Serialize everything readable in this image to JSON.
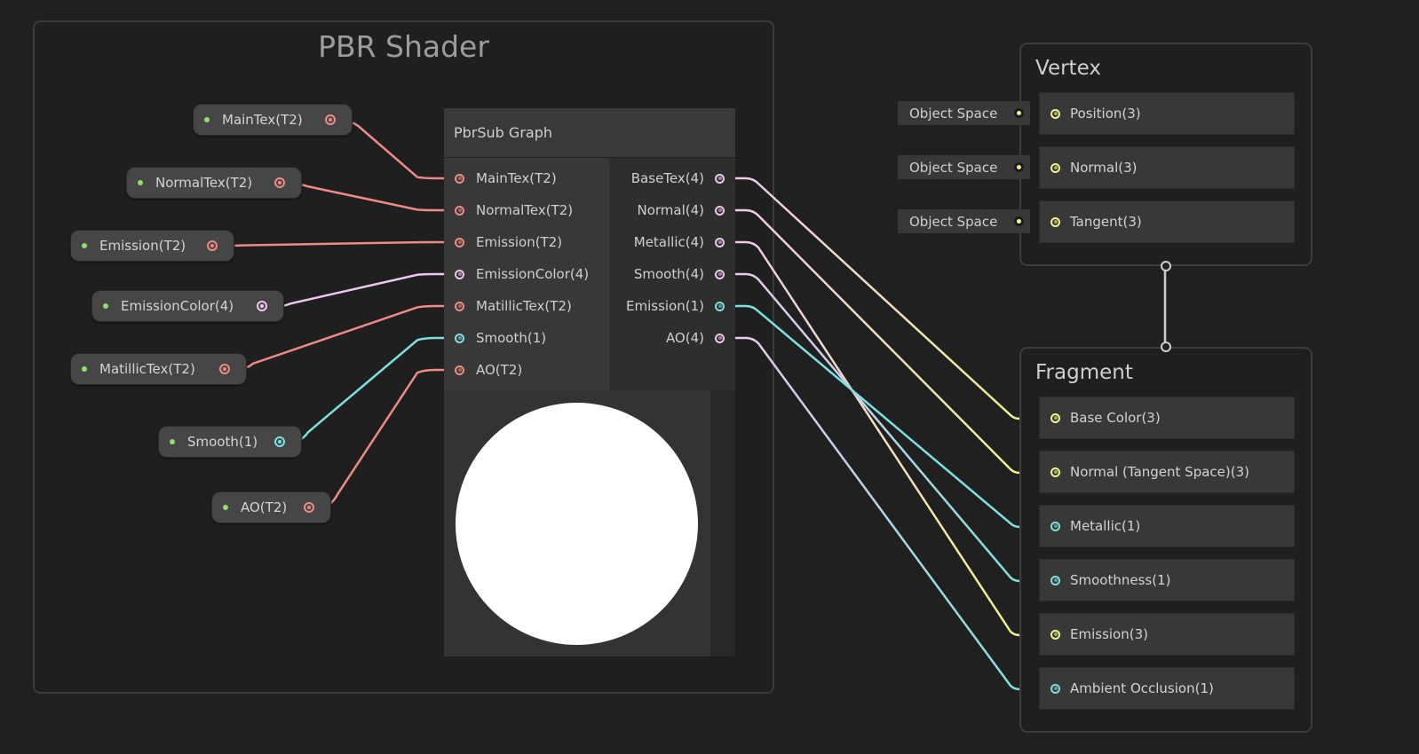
{
  "group": {
    "title": "PBR Shader"
  },
  "colors": {
    "texture": "#f08a84",
    "vector4": "#eec7f0",
    "float": "#7ee0e0",
    "vector3": "#f3f38c",
    "property_dot": "#8ce06b"
  },
  "properties": [
    {
      "label": "MainTex(T2)",
      "type": "texture"
    },
    {
      "label": "NormalTex(T2)",
      "type": "texture"
    },
    {
      "label": "Emission(T2)",
      "type": "texture"
    },
    {
      "label": "EmissionColor(4)",
      "type": "vector4"
    },
    {
      "label": "MatillicTex(T2)",
      "type": "texture"
    },
    {
      "label": "Smooth(1)",
      "type": "float"
    },
    {
      "label": "AO(T2)",
      "type": "texture"
    }
  ],
  "subgraph": {
    "title": "PbrSub Graph",
    "inputs": [
      {
        "label": "MainTex(T2)",
        "type": "texture"
      },
      {
        "label": "NormalTex(T2)",
        "type": "texture"
      },
      {
        "label": "Emission(T2)",
        "type": "texture"
      },
      {
        "label": "EmissionColor(4)",
        "type": "vector4"
      },
      {
        "label": "MatillicTex(T2)",
        "type": "texture"
      },
      {
        "label": "Smooth(1)",
        "type": "float"
      },
      {
        "label": "AO(T2)",
        "type": "texture"
      }
    ],
    "outputs": [
      {
        "label": "BaseTex(4)",
        "type": "vector4",
        "target": "Base Color(3)"
      },
      {
        "label": "Normal(4)",
        "type": "vector4",
        "target": "Normal (Tangent Space)(3)"
      },
      {
        "label": "Metallic(4)",
        "type": "vector4",
        "target": "Emission(3)"
      },
      {
        "label": "Smooth(4)",
        "type": "vector4",
        "target": "Smoothness(1)"
      },
      {
        "label": "Emission(1)",
        "type": "float",
        "target": "Metallic(1)"
      },
      {
        "label": "AO(4)",
        "type": "vector4",
        "target": "Ambient Occlusion(1)"
      }
    ]
  },
  "vertex": {
    "title": "Vertex",
    "slots": [
      {
        "label": "Position(3)",
        "space": "Object Space"
      },
      {
        "label": "Normal(3)",
        "space": "Object Space"
      },
      {
        "label": "Tangent(3)",
        "space": "Object Space"
      }
    ]
  },
  "fragment": {
    "title": "Fragment",
    "slots": [
      {
        "label": "Base Color(3)",
        "type": "vector3"
      },
      {
        "label": "Normal (Tangent Space)(3)",
        "type": "vector3"
      },
      {
        "label": "Metallic(1)",
        "type": "float"
      },
      {
        "label": "Smoothness(1)",
        "type": "float"
      },
      {
        "label": "Emission(3)",
        "type": "vector3"
      },
      {
        "label": "Ambient Occlusion(1)",
        "type": "float"
      }
    ]
  }
}
